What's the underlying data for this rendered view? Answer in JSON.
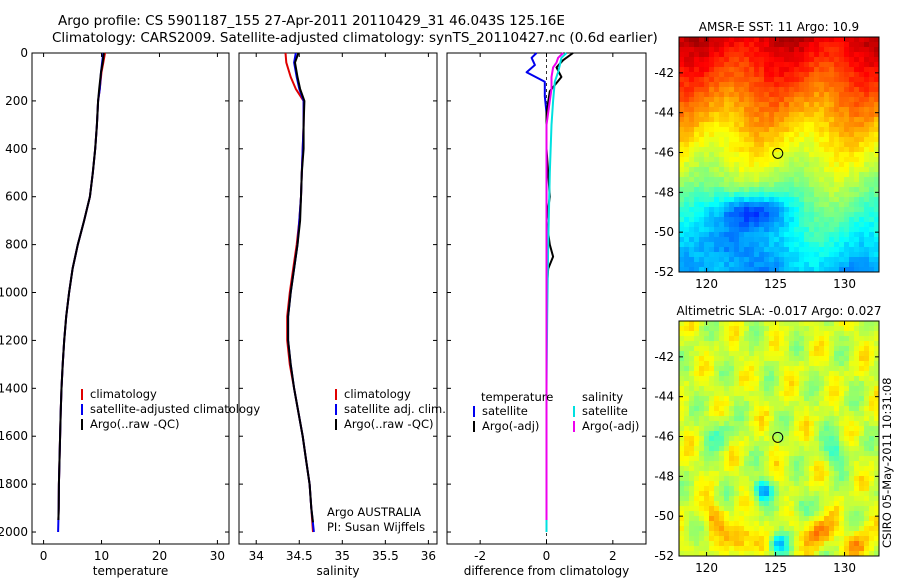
{
  "header": {
    "line1": "Argo profile: CS 5901187_155 27-Apr-2011 20110429_31 46.043S 125.16E",
    "line2": "Climatology: CARS2009. Satellite-adjusted climatology: synTS_20110427.nc (0.6d earlier)"
  },
  "credits": {
    "program": "Argo AUSTRALIA",
    "pi": "PI: Susan Wijffels",
    "stamp": "CSIRO 05-May-2011 10:31:08"
  },
  "depth_ticks": [
    "0",
    "200",
    "400",
    "600",
    "800",
    "1000",
    "1200",
    "1400",
    "1600",
    "1800",
    "2000"
  ],
  "colors": {
    "red": "#e00000",
    "blue": "#0000ee",
    "black": "#000000",
    "cyan": "#00e0e0",
    "magenta": "#ee00ee"
  },
  "chart_data": [
    {
      "type": "line",
      "name": "temperature-profile",
      "xlabel": "temperature",
      "ylabel": "depth",
      "xlim": [
        -2,
        32
      ],
      "ylim": [
        0,
        2050
      ],
      "y_reversed": true,
      "xticks": [
        "0",
        "10",
        "20",
        "30"
      ],
      "legend": [
        "climatology",
        "satellite-adjusted climatology",
        "Argo(..raw -QC)"
      ],
      "series": [
        {
          "name": "climatology",
          "color": "red",
          "depth": [
            0,
            40,
            80,
            150,
            200,
            300,
            400,
            500,
            600,
            700,
            800,
            900,
            1000,
            1100,
            1200,
            1300,
            1400,
            1500,
            1600,
            1700,
            1800,
            1900,
            1950
          ],
          "values": [
            10.6,
            10.3,
            10.0,
            9.7,
            9.4,
            9.2,
            8.9,
            8.5,
            8.0,
            7.0,
            5.9,
            5.0,
            4.4,
            3.9,
            3.55,
            3.3,
            3.1,
            2.95,
            2.85,
            2.75,
            2.65,
            2.6,
            2.55
          ]
        },
        {
          "name": "satellite-adjusted climatology",
          "color": "blue",
          "depth": [
            0,
            40,
            80,
            150,
            200,
            300,
            400,
            500,
            600,
            700,
            800,
            900,
            1000,
            1100,
            1200,
            1300,
            1400,
            1500,
            1600,
            1700,
            1800,
            1900,
            2000
          ],
          "values": [
            10.3,
            10.1,
            9.9,
            9.7,
            9.4,
            9.2,
            8.9,
            8.5,
            8.0,
            7.0,
            5.9,
            5.0,
            4.4,
            3.9,
            3.55,
            3.3,
            3.1,
            2.95,
            2.85,
            2.75,
            2.65,
            2.6,
            2.5
          ]
        },
        {
          "name": "Argo(..raw -QC)",
          "color": "black",
          "depth": [
            0,
            40,
            80,
            150,
            200,
            300,
            400,
            500,
            600,
            700,
            800,
            900,
            1000,
            1100,
            1200,
            1300,
            1400,
            1500,
            1600,
            1700,
            1800,
            1900,
            1950
          ],
          "values": [
            10.4,
            10.2,
            9.9,
            9.6,
            9.4,
            9.2,
            8.9,
            8.5,
            8.0,
            7.0,
            5.9,
            5.0,
            4.4,
            3.9,
            3.55,
            3.3,
            3.1,
            2.95,
            2.85,
            2.75,
            2.65,
            2.6,
            2.55
          ]
        }
      ]
    },
    {
      "type": "line",
      "name": "salinity-profile",
      "xlabel": "salinity",
      "ylabel": "depth",
      "xlim": [
        33.8,
        36.1
      ],
      "ylim": [
        0,
        2050
      ],
      "y_reversed": true,
      "xticks": [
        "34",
        "34.5",
        "35",
        "35.5",
        "36"
      ],
      "legend": [
        "climatology",
        "satellite adj. clim.",
        "Argo(..raw -QC)"
      ],
      "series": [
        {
          "name": "climatology",
          "color": "red",
          "depth": [
            0,
            40,
            100,
            150,
            200,
            300,
            400,
            500,
            600,
            700,
            800,
            900,
            1000,
            1100,
            1200,
            1300,
            1400,
            1500,
            1600,
            1700,
            1800,
            1900,
            2000
          ],
          "values": [
            34.34,
            34.35,
            34.4,
            34.46,
            34.55,
            34.55,
            34.54,
            34.53,
            34.52,
            34.5,
            34.47,
            34.43,
            34.39,
            34.36,
            34.36,
            34.39,
            34.44,
            34.49,
            34.54,
            34.58,
            34.62,
            34.64,
            34.66
          ]
        },
        {
          "name": "satellite adj. clim.",
          "color": "blue",
          "depth": [
            0,
            40,
            100,
            150,
            200,
            300,
            400,
            500,
            600,
            700,
            800,
            900,
            1000,
            1100,
            1200,
            1300,
            1400,
            1500,
            1600,
            1700,
            1800,
            1900,
            2000
          ],
          "values": [
            34.46,
            34.44,
            34.47,
            34.5,
            34.55,
            34.55,
            34.54,
            34.53,
            34.52,
            34.5,
            34.48,
            34.44,
            34.4,
            34.37,
            34.37,
            34.4,
            34.44,
            34.49,
            34.54,
            34.58,
            34.62,
            34.64,
            34.67
          ]
        },
        {
          "name": "Argo(..raw -QC)",
          "color": "black",
          "depth": [
            0,
            40,
            100,
            150,
            200,
            300,
            400,
            500,
            600,
            700,
            800,
            900,
            1000,
            1100,
            1200,
            1300,
            1400,
            1500,
            1600,
            1700,
            1800,
            1900,
            1960
          ],
          "values": [
            34.49,
            34.45,
            34.48,
            34.51,
            34.56,
            34.55,
            34.55,
            34.53,
            34.52,
            34.51,
            34.48,
            34.44,
            34.4,
            34.37,
            34.37,
            34.4,
            34.44,
            34.49,
            34.54,
            34.58,
            34.62,
            34.64,
            34.66
          ]
        }
      ]
    },
    {
      "type": "line",
      "name": "difference-profile",
      "xlabel": "difference from climatology",
      "ylabel": "depth",
      "xlim": [
        -3.0,
        3.0
      ],
      "ylim": [
        0,
        2050
      ],
      "y_reversed": true,
      "xticks": [
        "-2",
        "0",
        "2"
      ],
      "legend_title": [
        "temperature",
        "salinity"
      ],
      "legend": [
        "satellite",
        "satellite",
        "Argo(-adj)",
        "Argo(-adj)"
      ],
      "series": [
        {
          "name": "temperature satellite",
          "color": "blue",
          "depth": [
            0,
            20,
            50,
            80,
            120,
            180,
            250,
            350,
            500,
            700,
            900,
            1100,
            1300,
            1500,
            1700,
            1900,
            2000
          ],
          "values": [
            -0.3,
            -0.45,
            -0.35,
            -0.6,
            -0.05,
            -0.05,
            0.0,
            0.0,
            0.0,
            0.0,
            0.0,
            0.0,
            0.0,
            0.0,
            0.0,
            0.0,
            0.0
          ]
        },
        {
          "name": "temperature Argo(-adj)",
          "color": "black",
          "depth": [
            0,
            30,
            60,
            100,
            160,
            250,
            400,
            500,
            600,
            700,
            800,
            850,
            900,
            1000,
            1200,
            1400,
            1600,
            1800,
            1950
          ],
          "values": [
            0.8,
            0.5,
            0.3,
            0.45,
            0.1,
            0.0,
            0.0,
            0.05,
            0.1,
            0.0,
            0.1,
            0.2,
            0.05,
            0.0,
            0.0,
            0.0,
            0.0,
            0.0,
            0.0
          ]
        },
        {
          "name": "salinity satellite",
          "color": "cyan",
          "depth": [
            0,
            20,
            50,
            80,
            120,
            200,
            300,
            500,
            800,
            1100,
            1400,
            1700,
            2000
          ],
          "values": [
            0.6,
            0.45,
            0.4,
            0.35,
            0.25,
            0.2,
            0.15,
            0.1,
            0.05,
            0.02,
            0.0,
            0.0,
            0.0
          ]
        },
        {
          "name": "salinity Argo(-adj)",
          "color": "magenta",
          "depth": [
            0,
            20,
            40,
            60,
            100,
            150,
            200,
            300,
            400,
            500,
            600,
            800,
            1000,
            1200,
            1400,
            1600,
            1800,
            1950
          ],
          "values": [
            0.5,
            0.35,
            0.3,
            0.2,
            0.15,
            0.15,
            0.1,
            0.0,
            0.0,
            0.0,
            0.0,
            0.0,
            0.0,
            0.0,
            0.0,
            0.0,
            0.0,
            0.0
          ]
        }
      ]
    },
    {
      "type": "heatmap",
      "name": "sst-map",
      "title": "AMSR-E SST: 11 Argo: 10.9",
      "xlim": [
        118,
        132.5
      ],
      "ylim": [
        -52,
        -40.2
      ],
      "xticks": [
        "120",
        "125",
        "130"
      ],
      "yticks": [
        "-42",
        "-44",
        "-46",
        "-48",
        "-50",
        "-52"
      ],
      "marker": {
        "lon": 125.16,
        "lat": -46.043
      }
    },
    {
      "type": "heatmap",
      "name": "sla-map",
      "title": "Altimetric SLA: -0.017 Argo: 0.027",
      "xlim": [
        118,
        132.5
      ],
      "ylim": [
        -52,
        -40.2
      ],
      "xticks": [
        "120",
        "125",
        "130"
      ],
      "yticks": [
        "-42",
        "-44",
        "-46",
        "-48",
        "-50",
        "-52"
      ],
      "marker": {
        "lon": 125.16,
        "lat": -46.043
      }
    }
  ]
}
